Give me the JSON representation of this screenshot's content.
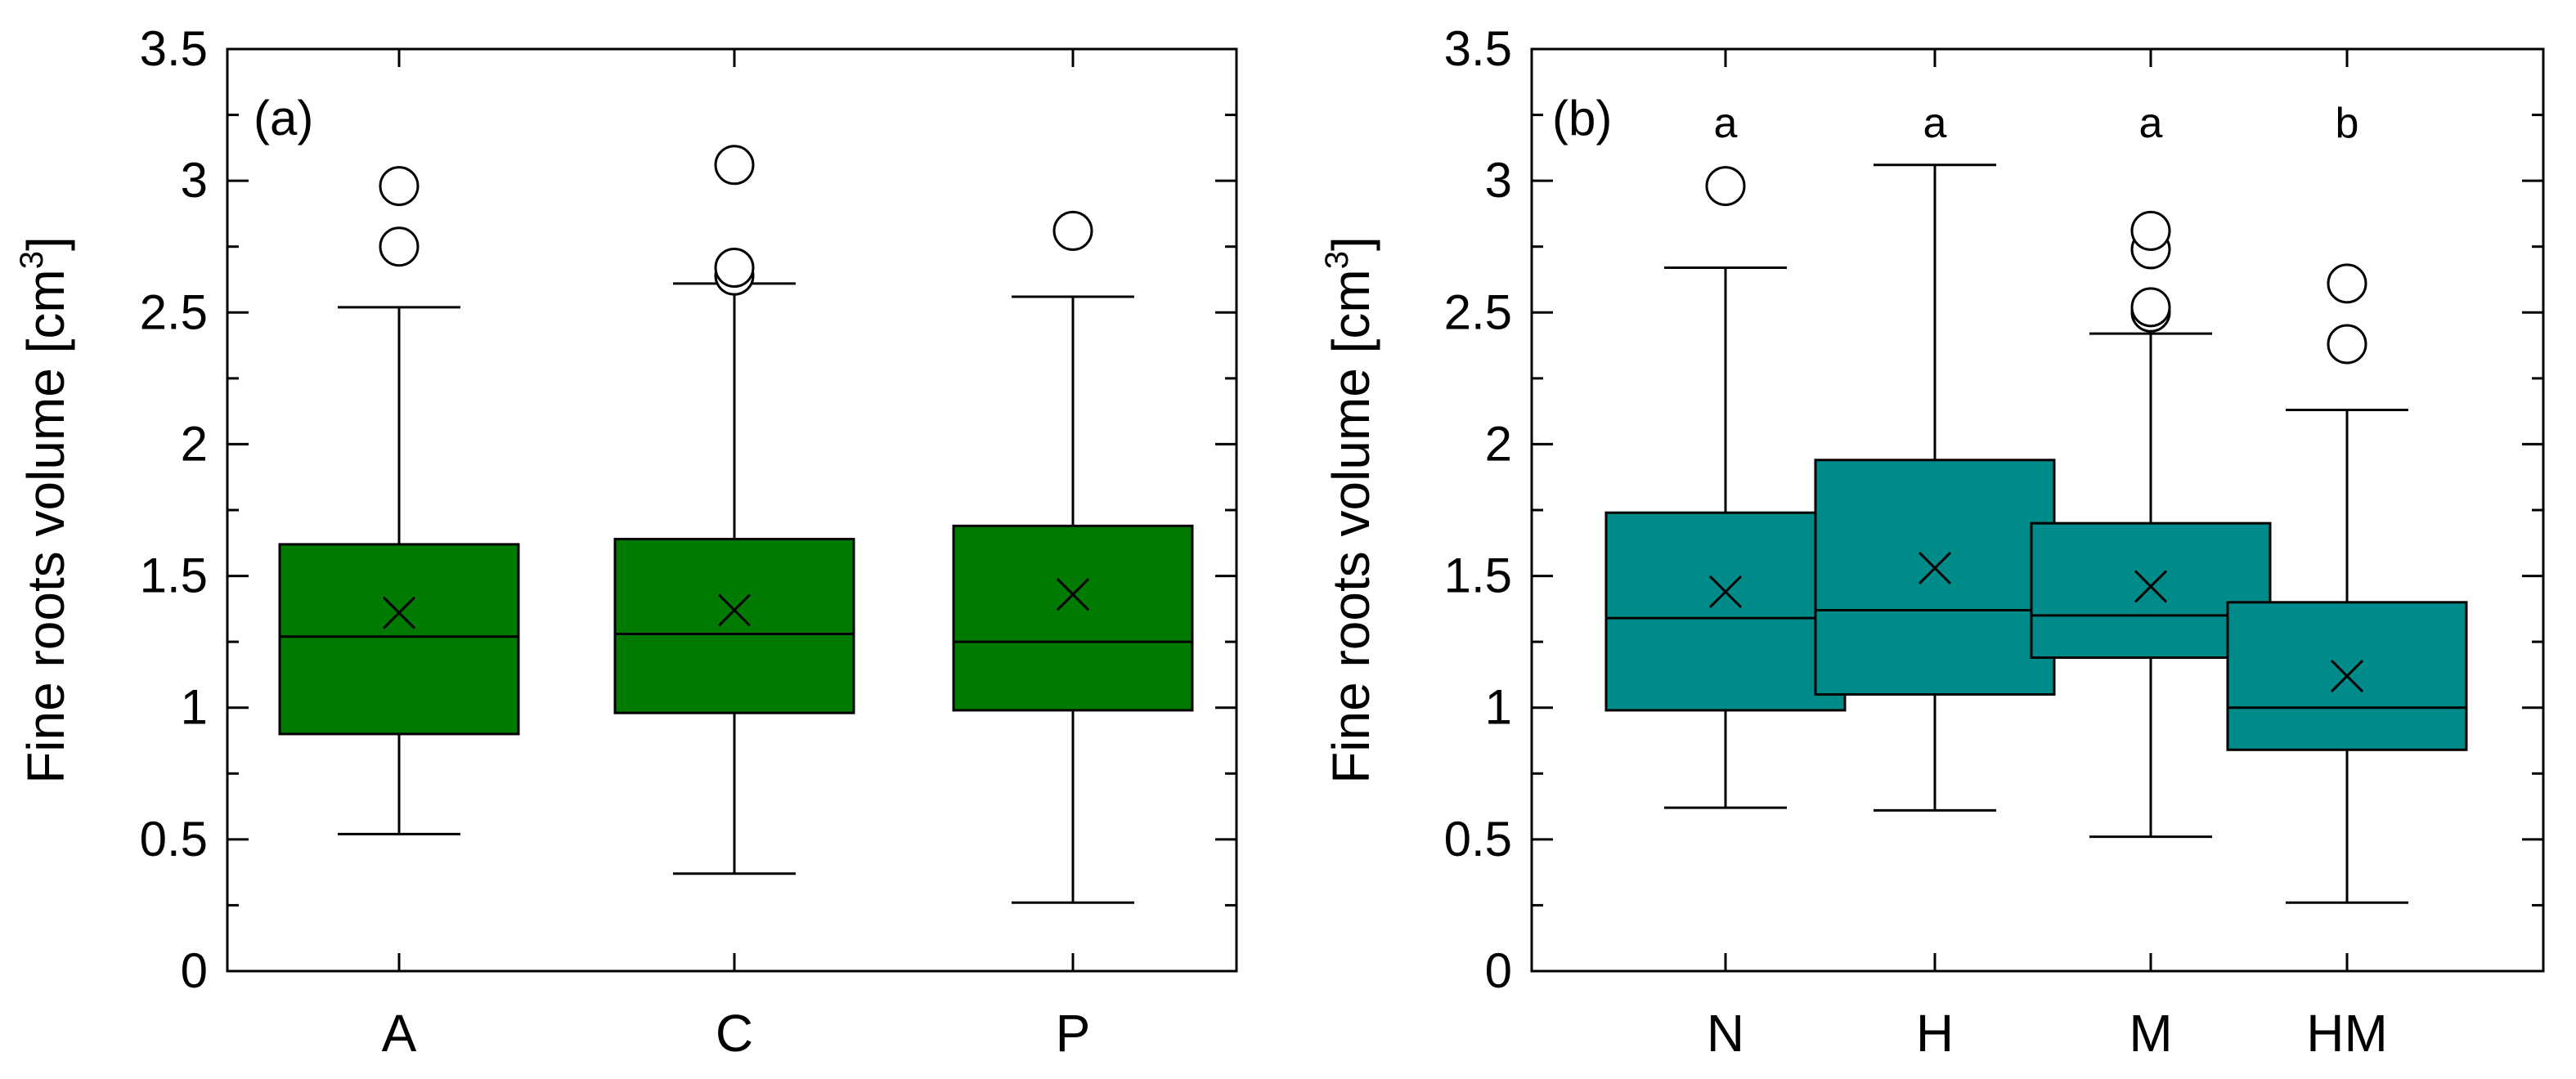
{
  "chart_data": [
    {
      "type": "boxplot",
      "panel_label": "(a)",
      "ylabel": "Fine roots volume [cm",
      "ylabel_sup": "3",
      "ylabel_close": "]",
      "ylim": [
        0,
        3.5
      ],
      "yticks": [
        0,
        0.5,
        1,
        1.5,
        2,
        2.5,
        3,
        3.5
      ],
      "ytick_labels": [
        "0",
        "0.5",
        "1",
        "1.5",
        "2",
        "2.5",
        "3",
        "3.5"
      ],
      "box_color": "#007a00",
      "categories": [
        "A",
        "C",
        "P"
      ],
      "boxes": [
        {
          "category": "A",
          "whisker_low": 0.52,
          "q1": 0.9,
          "median": 1.27,
          "q3": 1.62,
          "whisker_high": 2.52,
          "mean": 1.36,
          "outliers": [
            2.75,
            2.98
          ],
          "sig": ""
        },
        {
          "category": "C",
          "whisker_low": 0.37,
          "q1": 0.98,
          "median": 1.28,
          "q3": 1.64,
          "whisker_high": 2.61,
          "mean": 1.37,
          "outliers": [
            2.64,
            2.67,
            3.06
          ],
          "sig": ""
        },
        {
          "category": "P",
          "whisker_low": 0.26,
          "q1": 0.99,
          "median": 1.25,
          "q3": 1.69,
          "whisker_high": 2.56,
          "mean": 1.43,
          "outliers": [
            2.81
          ],
          "sig": ""
        }
      ]
    },
    {
      "type": "boxplot",
      "panel_label": "(b)",
      "ylabel": "Fine roots volume [cm",
      "ylabel_sup": "3",
      "ylabel_close": "]",
      "ylim": [
        0,
        3.5
      ],
      "yticks": [
        0,
        0.5,
        1,
        1.5,
        2,
        2.5,
        3,
        3.5
      ],
      "ytick_labels": [
        "0",
        "0.5",
        "1",
        "1.5",
        "2",
        "2.5",
        "3",
        "3.5"
      ],
      "box_color": "#008b8b",
      "categories": [
        "N",
        "H",
        "M",
        "HM"
      ],
      "boxes": [
        {
          "category": "N",
          "whisker_low": 0.62,
          "q1": 0.99,
          "median": 1.34,
          "q3": 1.74,
          "whisker_high": 2.67,
          "mean": 1.44,
          "outliers": [
            2.98
          ],
          "sig": "a"
        },
        {
          "category": "H",
          "whisker_low": 0.61,
          "q1": 1.05,
          "median": 1.37,
          "q3": 1.94,
          "whisker_high": 3.06,
          "mean": 1.53,
          "outliers": [],
          "sig": "a"
        },
        {
          "category": "M",
          "whisker_low": 0.51,
          "q1": 1.19,
          "median": 1.35,
          "q3": 1.7,
          "whisker_high": 2.42,
          "mean": 1.46,
          "outliers": [
            2.5,
            2.52,
            2.74,
            2.81
          ],
          "sig": "a"
        },
        {
          "category": "HM",
          "whisker_low": 0.26,
          "q1": 0.84,
          "median": 1.0,
          "q3": 1.4,
          "whisker_high": 2.13,
          "mean": 1.12,
          "outliers": [
            2.38,
            2.61
          ],
          "sig": "b"
        }
      ]
    }
  ]
}
